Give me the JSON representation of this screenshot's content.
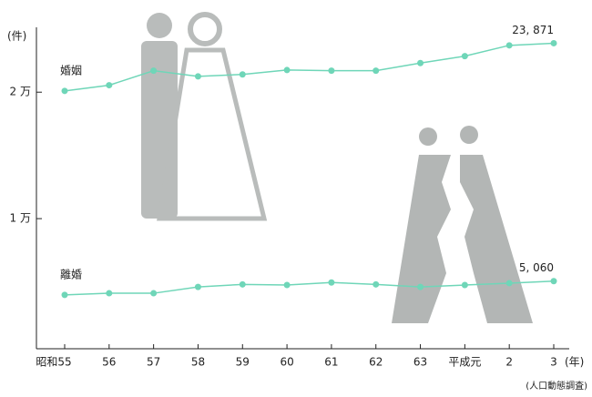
{
  "chart_data": {
    "type": "line",
    "y_unit": "(件)",
    "x_unit": "(年)",
    "source": "(人口動態調査)",
    "categories": [
      "昭和55",
      "56",
      "57",
      "58",
      "59",
      "60",
      "61",
      "62",
      "63",
      "平成元",
      "2",
      "3"
    ],
    "series": [
      {
        "name": "婚姻",
        "color": "#6fd6b8",
        "values": [
          20100,
          20550,
          21700,
          21250,
          21400,
          21750,
          21700,
          21700,
          22300,
          22850,
          23700,
          23871
        ],
        "value_labels": [
          null,
          null,
          null,
          null,
          null,
          null,
          null,
          null,
          null,
          null,
          null,
          "23, 871"
        ]
      },
      {
        "name": "離婚",
        "color": "#6fd6b8",
        "values": [
          3970,
          4100,
          4100,
          4600,
          4800,
          4750,
          4950,
          4800,
          4600,
          4750,
          4900,
          5060
        ],
        "value_labels": [
          null,
          null,
          null,
          null,
          null,
          null,
          null,
          null,
          null,
          null,
          null,
          "5, 060"
        ]
      }
    ],
    "ylim": [
      0,
      27000
    ],
    "yticks": [
      {
        "value": 10000,
        "label": "1 万"
      },
      {
        "value": 20000,
        "label": "2 万"
      }
    ],
    "grid": false
  }
}
